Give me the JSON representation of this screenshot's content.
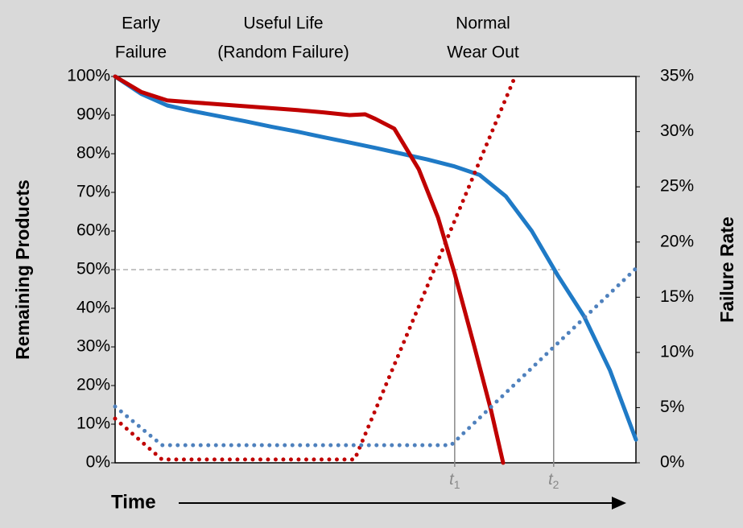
{
  "chart_data": {
    "type": "line",
    "phases": [
      [
        "Early",
        "Failure"
      ],
      [
        "Useful Life",
        "(Random Failure)"
      ],
      [
        "Normal",
        "Wear Out"
      ]
    ],
    "y_label": "Remaining Products",
    "y2_label": "Failure Rate",
    "x_label": "Time",
    "xlim": [
      0,
      100
    ],
    "ylim": [
      0,
      100
    ],
    "yticks": [
      {
        "value": 0,
        "label": "0%"
      },
      {
        "value": 10,
        "label": "10%"
      },
      {
        "value": 20,
        "label": "20%"
      },
      {
        "value": 30,
        "label": "30%"
      },
      {
        "value": 40,
        "label": "40%"
      },
      {
        "value": 50,
        "label": "50%"
      },
      {
        "value": 60,
        "label": "60%"
      },
      {
        "value": 70,
        "label": "70%"
      },
      {
        "value": 80,
        "label": "80%"
      },
      {
        "value": 90,
        "label": "90%"
      },
      {
        "value": 100,
        "label": "100%"
      }
    ],
    "y2lim": [
      0,
      35
    ],
    "y2ticks": [
      {
        "value": 0,
        "label": "0%"
      },
      {
        "value": 5,
        "label": "5%"
      },
      {
        "value": 10,
        "label": "10%"
      },
      {
        "value": 15,
        "label": "15%"
      },
      {
        "value": 20,
        "label": "20%"
      },
      {
        "value": 25,
        "label": "25%"
      },
      {
        "value": 30,
        "label": "30%"
      },
      {
        "value": 35,
        "label": "35%"
      }
    ],
    "series": [
      {
        "color": "#1f7ac6",
        "style": "solid",
        "axis": "y",
        "x": [
          0,
          5,
          10,
          15,
          20,
          25,
          30,
          35,
          40,
          45,
          50,
          55,
          60,
          65,
          70,
          75,
          80,
          85,
          90,
          95,
          100
        ],
        "values": [
          100,
          95.5,
          92.5,
          91,
          89.7,
          88.4,
          87,
          85.7,
          84.3,
          82.9,
          81.5,
          80,
          78.5,
          76.8,
          74.5,
          69,
          60,
          48.5,
          38,
          24,
          6
        ]
      },
      {
        "color": "#c00000",
        "style": "solid",
        "axis": "y",
        "x": [
          0,
          5,
          10,
          15,
          20,
          25,
          30,
          35,
          40,
          45,
          48,
          50,
          53.6,
          58.3,
          62,
          65.2,
          69,
          72.2,
          74.5
        ],
        "values": [
          100,
          96,
          93.8,
          93.3,
          92.8,
          92.3,
          91.8,
          91.3,
          90.7,
          90,
          90.2,
          89,
          86.5,
          76,
          63.5,
          49,
          30,
          13.5,
          0
        ]
      },
      {
        "color": "#c00000",
        "style": "dotted",
        "axis": "y2",
        "x": [
          0,
          9,
          46,
          76.8
        ],
        "values": [
          4,
          0.3,
          0.3,
          35
        ]
      },
      {
        "color": "#4f81bd",
        "style": "dotted",
        "axis": "y2",
        "x": [
          0,
          9,
          64.5,
          100
        ],
        "values": [
          5.1,
          1.6,
          1.6,
          17.6
        ]
      }
    ],
    "reference_y": 50,
    "markers": [
      {
        "x": 65.2,
        "label": "t",
        "sub": "1"
      },
      {
        "x": 84.2,
        "label": "t",
        "sub": "2"
      }
    ]
  }
}
